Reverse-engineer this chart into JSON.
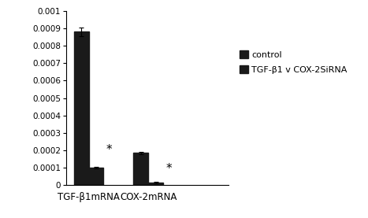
{
  "categories": [
    "TGF-β1mRNA",
    "COX-2mRNA"
  ],
  "control_values": [
    0.00088,
    0.000185
  ],
  "sirna_values": [
    0.0001,
    1.5e-05
  ],
  "control_errors": [
    2.5e-05,
    8e-06
  ],
  "sirna_errors": [
    5e-06,
    3e-06
  ],
  "bar_color": "#1a1a1a",
  "ylim": [
    0,
    0.001
  ],
  "yticks": [
    0,
    0.0001,
    0.0002,
    0.0003,
    0.0004,
    0.0005,
    0.0006,
    0.0007,
    0.0008,
    0.0009,
    0.001
  ],
  "ytick_labels": [
    "0",
    "0.0001",
    "0.0002",
    "0.0003",
    "0.0004",
    "0.0005",
    "0.0006",
    "0.0007",
    "0.0008",
    "0.0009",
    "0.001"
  ],
  "legend_control": "control",
  "legend_sirna": "TGF-β1 v COX-2SiRNA",
  "bar_width": 0.3,
  "group_positions": [
    0.7,
    1.9
  ]
}
